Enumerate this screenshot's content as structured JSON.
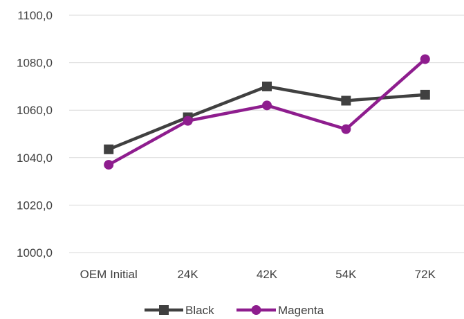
{
  "chart_data": {
    "type": "line",
    "title": "",
    "xlabel": "",
    "ylabel": "",
    "categories": [
      "OEM Initial",
      "24K",
      "42K",
      "54K",
      "72K"
    ],
    "ylim": [
      1000,
      1100
    ],
    "yticks": [
      1000,
      1020,
      1040,
      1060,
      1080,
      1100
    ],
    "ytick_labels": [
      "1000,0",
      "1020,0",
      "1040,0",
      "1060,0",
      "1080,0",
      "1100,0"
    ],
    "grid": true,
    "legend_position": "bottom",
    "series": [
      {
        "name": "Black",
        "color": "#404040",
        "marker": "square",
        "values": [
          1043.5,
          1057.0,
          1070.0,
          1064.0,
          1066.5
        ]
      },
      {
        "name": "Magenta",
        "color": "#8e1d8e",
        "marker": "circle",
        "values": [
          1037.0,
          1055.5,
          1062.0,
          1052.0,
          1081.5
        ]
      }
    ]
  }
}
